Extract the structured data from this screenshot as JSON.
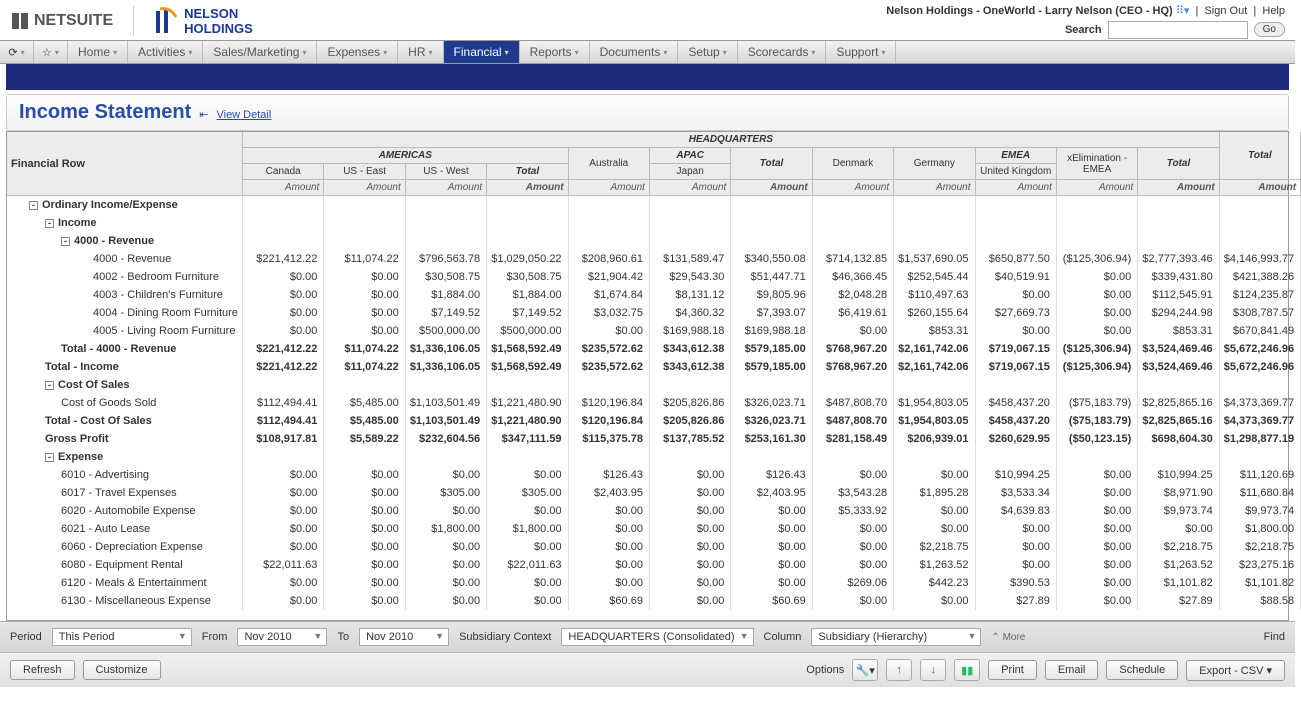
{
  "top": {
    "ns_logo": "NETSUITE",
    "nh_logo_l1": "NELSON",
    "nh_logo_l2": "HOLDINGS",
    "context": "Nelson Holdings - OneWorld - Larry Nelson (CEO - HQ)",
    "signout": "Sign Out",
    "help": "Help",
    "search_label": "Search",
    "go": "Go"
  },
  "menu": [
    "Home",
    "Activities",
    "Sales/Marketing",
    "Expenses",
    "HR",
    "Financial",
    "Reports",
    "Documents",
    "Setup",
    "Scorecards",
    "Support"
  ],
  "menu_active": 5,
  "title": {
    "h1": "Income Statement",
    "link": "View Detail"
  },
  "hdr": {
    "row_label": "Financial Row",
    "top_group": "HEADQUARTERS",
    "groups": [
      "AMERICAS",
      "APAC",
      "EMEA"
    ],
    "cols": [
      "Canada",
      "US - East",
      "US - West",
      "Total",
      "Australia",
      "Japan",
      "Total",
      "Denmark",
      "Germany",
      "United Kingdom",
      "xElimination - EMEA",
      "Total",
      "Total"
    ],
    "amount": "Amount"
  },
  "rows": [
    {
      "lab": "Ordinary Income/Expense",
      "ind": 1,
      "tog": "-",
      "bold": true,
      "vals": []
    },
    {
      "lab": "Income",
      "ind": 2,
      "tog": "-",
      "bold": true,
      "vals": []
    },
    {
      "lab": "4000 - Revenue",
      "ind": 3,
      "tog": "-",
      "bold": true,
      "vals": []
    },
    {
      "lab": "4000 - Revenue",
      "ind": 5,
      "vals": [
        "$221,412.22",
        "$11,074.22",
        "$796,563.78",
        "$1,029,050.22",
        "$208,960.61",
        "$131,589.47",
        "$340,550.08",
        "$714,132.85",
        "$1,537,690.05",
        "$650,877.50",
        "($125,306.94)",
        "$2,777,393.46",
        "$4,146,993.77"
      ]
    },
    {
      "lab": "4002 - Bedroom Furniture",
      "ind": 5,
      "vals": [
        "$0.00",
        "$0.00",
        "$30,508.75",
        "$30,508.75",
        "$21,904.42",
        "$29,543.30",
        "$51,447.71",
        "$46,366.45",
        "$252,545.44",
        "$40,519.91",
        "$0.00",
        "$339,431.80",
        "$421,388.26"
      ]
    },
    {
      "lab": "4003 - Children's Furniture",
      "ind": 5,
      "vals": [
        "$0.00",
        "$0.00",
        "$1,884.00",
        "$1,884.00",
        "$1,674.84",
        "$8,131.12",
        "$9,805.96",
        "$2,048.28",
        "$110,497.63",
        "$0.00",
        "$0.00",
        "$112,545.91",
        "$124,235.87"
      ]
    },
    {
      "lab": "4004 - Dining Room Furniture",
      "ind": 5,
      "vals": [
        "$0.00",
        "$0.00",
        "$7,149.52",
        "$7,149.52",
        "$3,032.75",
        "$4,360.32",
        "$7,393.07",
        "$6,419.61",
        "$260,155.64",
        "$27,669.73",
        "$0.00",
        "$294,244.98",
        "$308,787.57"
      ]
    },
    {
      "lab": "4005 - Living Room Furniture",
      "ind": 5,
      "vals": [
        "$0.00",
        "$0.00",
        "$500,000.00",
        "$500,000.00",
        "$0.00",
        "$169,988.18",
        "$169,988.18",
        "$0.00",
        "$853.31",
        "$0.00",
        "$0.00",
        "$853.31",
        "$670,841.49"
      ]
    },
    {
      "lab": "Total - 4000 - Revenue",
      "ind": 3,
      "bold": true,
      "vals": [
        "$221,412.22",
        "$11,074.22",
        "$1,336,106.05",
        "$1,568,592.49",
        "$235,572.62",
        "$343,612.38",
        "$579,185.00",
        "$768,967.20",
        "$2,161,742.06",
        "$719,067.15",
        "($125,306.94)",
        "$3,524,469.46",
        "$5,672,246.96"
      ]
    },
    {
      "lab": "Total - Income",
      "ind": 2,
      "bold": true,
      "vals": [
        "$221,412.22",
        "$11,074.22",
        "$1,336,106.05",
        "$1,568,592.49",
        "$235,572.62",
        "$343,612.38",
        "$579,185.00",
        "$768,967.20",
        "$2,161,742.06",
        "$719,067.15",
        "($125,306.94)",
        "$3,524,469.46",
        "$5,672,246.96"
      ]
    },
    {
      "lab": "Cost Of Sales",
      "ind": 2,
      "tog": "-",
      "bold": true,
      "vals": []
    },
    {
      "lab": "Cost of Goods Sold",
      "ind": 3,
      "vals": [
        "$112,494.41",
        "$5,485.00",
        "$1,103,501.49",
        "$1,221,480.90",
        "$120,196.84",
        "$205,826.86",
        "$326,023.71",
        "$487,808.70",
        "$1,954,803.05",
        "$458,437.20",
        "($75,183.79)",
        "$2,825,865.16",
        "$4,373,369.77"
      ]
    },
    {
      "lab": "Total - Cost Of Sales",
      "ind": 2,
      "bold": true,
      "vals": [
        "$112,494.41",
        "$5,485.00",
        "$1,103,501.49",
        "$1,221,480.90",
        "$120,196.84",
        "$205,826.86",
        "$326,023.71",
        "$487,808.70",
        "$1,954,803.05",
        "$458,437.20",
        "($75,183.79)",
        "$2,825,865.16",
        "$4,373,369.77"
      ]
    },
    {
      "lab": "Gross Profit",
      "ind": 2,
      "bold": true,
      "vals": [
        "$108,917.81",
        "$5,589.22",
        "$232,604.56",
        "$347,111.59",
        "$115,375.78",
        "$137,785.52",
        "$253,161.30",
        "$281,158.49",
        "$206,939.01",
        "$260,629.95",
        "($50,123.15)",
        "$698,604.30",
        "$1,298,877.19"
      ]
    },
    {
      "lab": "Expense",
      "ind": 2,
      "tog": "-",
      "bold": true,
      "vals": []
    },
    {
      "lab": "6010 - Advertising",
      "ind": 3,
      "vals": [
        "$0.00",
        "$0.00",
        "$0.00",
        "$0.00",
        "$126.43",
        "$0.00",
        "$126.43",
        "$0.00",
        "$0.00",
        "$10,994.25",
        "$0.00",
        "$10,994.25",
        "$11,120.69"
      ]
    },
    {
      "lab": "6017 - Travel Expenses",
      "ind": 3,
      "vals": [
        "$0.00",
        "$0.00",
        "$305.00",
        "$305.00",
        "$2,403.95",
        "$0.00",
        "$2,403.95",
        "$3,543.28",
        "$1,895.28",
        "$3,533.34",
        "$0.00",
        "$8,971.90",
        "$11,680.84"
      ]
    },
    {
      "lab": "6020 - Automobile Expense",
      "ind": 3,
      "vals": [
        "$0.00",
        "$0.00",
        "$0.00",
        "$0.00",
        "$0.00",
        "$0.00",
        "$0.00",
        "$5,333.92",
        "$0.00",
        "$4,639.83",
        "$0.00",
        "$9,973.74",
        "$9,973.74"
      ]
    },
    {
      "lab": "6021 - Auto Lease",
      "ind": 3,
      "vals": [
        "$0.00",
        "$0.00",
        "$1,800.00",
        "$1,800.00",
        "$0.00",
        "$0.00",
        "$0.00",
        "$0.00",
        "$0.00",
        "$0.00",
        "$0.00",
        "$0.00",
        "$1,800.00"
      ]
    },
    {
      "lab": "6060 - Depreciation Expense",
      "ind": 3,
      "vals": [
        "$0.00",
        "$0.00",
        "$0.00",
        "$0.00",
        "$0.00",
        "$0.00",
        "$0.00",
        "$0.00",
        "$2,218.75",
        "$0.00",
        "$0.00",
        "$2,218.75",
        "$2,218.75"
      ]
    },
    {
      "lab": "6080 - Equipment Rental",
      "ind": 3,
      "vals": [
        "$22,011.63",
        "$0.00",
        "$0.00",
        "$22,011.63",
        "$0.00",
        "$0.00",
        "$0.00",
        "$0.00",
        "$1,263.52",
        "$0.00",
        "$0.00",
        "$1,263.52",
        "$23,275.16"
      ]
    },
    {
      "lab": "6120 - Meals & Entertainment",
      "ind": 3,
      "vals": [
        "$0.00",
        "$0.00",
        "$0.00",
        "$0.00",
        "$0.00",
        "$0.00",
        "$0.00",
        "$269.06",
        "$442.23",
        "$390.53",
        "$0.00",
        "$1,101.82",
        "$1,101.82"
      ]
    },
    {
      "lab": "6130 - Miscellaneous Expense",
      "ind": 3,
      "vals": [
        "$0.00",
        "$0.00",
        "$0.00",
        "$0.00",
        "$60.69",
        "$0.00",
        "$60.69",
        "$0.00",
        "$0.00",
        "$27.89",
        "$0.00",
        "$27.89",
        "$88.58"
      ]
    }
  ],
  "filter": {
    "period_lbl": "Period",
    "period_val": "This Period",
    "from_lbl": "From",
    "from_val": "Nov 2010",
    "to_lbl": "To",
    "to_val": "Nov 2010",
    "sub_lbl": "Subsidiary Context",
    "sub_val": "HEADQUARTERS (Consolidated)",
    "col_lbl": "Column",
    "col_val": "Subsidiary (Hierarchy)",
    "more": "More",
    "find": "Find"
  },
  "actions": {
    "refresh": "Refresh",
    "customize": "Customize",
    "options": "Options",
    "print": "Print",
    "email": "Email",
    "schedule": "Schedule",
    "export": "Export - CSV"
  }
}
